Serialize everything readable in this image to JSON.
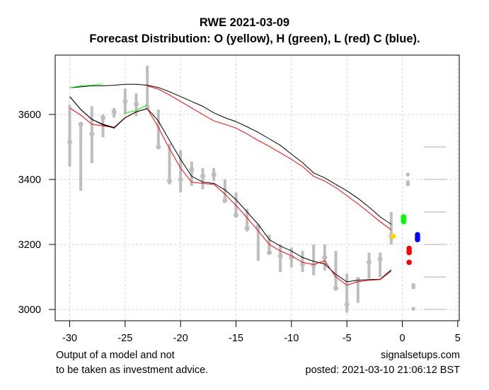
{
  "chart_data": {
    "type": "line",
    "title": "RWE 2021-03-09",
    "subtitle": "Forecast Distribution: O (yellow), H (green), L (red) C (blue).",
    "xlabel": "",
    "ylabel": "",
    "xlim": [
      -31.5,
      6.5
    ],
    "ylim": [
      2970,
      3785
    ],
    "x_ticks": [
      -30,
      -25,
      -20,
      -15,
      -10,
      -5,
      0,
      5
    ],
    "x_tick_labels": [
      "-30",
      "-25",
      "-20",
      "-15",
      "-10",
      "-5",
      "0",
      "5"
    ],
    "y_ticks": [
      3000,
      3200,
      3400,
      3600
    ],
    "y_tick_labels": [
      "3000",
      "3200",
      "3400",
      "3600"
    ],
    "grid": true,
    "colors": {
      "bars": "#bebebe",
      "upper_band": "#000000",
      "lower_band": "#000000",
      "inner_band": "#ff0000",
      "high_segment": "#00ff00",
      "open": "#ffd700",
      "high": "#00ff00",
      "low": "#ff0000",
      "close": "#0000ff",
      "ref_lines": "#bebebe"
    },
    "price_bars": [
      {
        "x": -30,
        "high": 3630,
        "low": 3440,
        "close": 3515
      },
      {
        "x": -29,
        "high": 3570,
        "low": 3365,
        "close": 3570
      },
      {
        "x": -28,
        "high": 3625,
        "low": 3450,
        "close": 3540
      },
      {
        "x": -27,
        "high": 3600,
        "low": 3530,
        "close": 3590
      },
      {
        "x": -26,
        "high": 3620,
        "low": 3590,
        "close": 3608
      },
      {
        "x": -25,
        "high": 3680,
        "low": 3600,
        "close": 3640
      },
      {
        "x": -24,
        "high": 3665,
        "low": 3595,
        "close": 3632
      },
      {
        "x": -23,
        "high": 3750,
        "low": 3615,
        "close": 3622
      },
      {
        "x": -22,
        "high": 3615,
        "low": 3500,
        "close": 3500
      },
      {
        "x": -21,
        "high": 3510,
        "low": 3385,
        "close": 3395
      },
      {
        "x": -20,
        "high": 3490,
        "low": 3360,
        "close": 3400
      },
      {
        "x": -19,
        "high": 3455,
        "low": 3380,
        "close": 3430
      },
      {
        "x": -18,
        "high": 3435,
        "low": 3370,
        "close": 3410
      },
      {
        "x": -17,
        "high": 3435,
        "low": 3395,
        "close": 3415
      },
      {
        "x": -16,
        "high": 3400,
        "low": 3335,
        "close": 3335
      },
      {
        "x": -15,
        "high": 3360,
        "low": 3285,
        "close": 3290
      },
      {
        "x": -14,
        "high": 3310,
        "low": 3240,
        "close": 3250
      },
      {
        "x": -13,
        "high": 3260,
        "low": 3150,
        "close": 3255
      },
      {
        "x": -12,
        "high": 3230,
        "low": 3170,
        "close": 3175
      },
      {
        "x": -11,
        "high": 3200,
        "low": 3115,
        "close": 3165
      },
      {
        "x": -10,
        "high": 3190,
        "low": 3130,
        "close": 3160
      },
      {
        "x": -9,
        "high": 3180,
        "low": 3115,
        "close": 3140
      },
      {
        "x": -8,
        "high": 3200,
        "low": 3105,
        "close": 3135
      },
      {
        "x": -7,
        "high": 3200,
        "low": 3120,
        "close": 3160
      },
      {
        "x": -6,
        "high": 3180,
        "low": 3060,
        "close": 3065
      },
      {
        "x": -5,
        "high": 3110,
        "low": 2990,
        "close": 3015
      },
      {
        "x": -4,
        "high": 3100,
        "low": 3020,
        "close": 3090
      },
      {
        "x": -3,
        "high": 3175,
        "low": 3095,
        "close": 3145
      },
      {
        "x": -2,
        "high": 3175,
        "low": 3100,
        "close": 3155
      },
      {
        "x": -1,
        "high": 3300,
        "low": 3200,
        "close": 3225
      }
    ],
    "series": [
      {
        "name": "upper_black",
        "x": [
          -30,
          -29,
          -28,
          -27,
          -26,
          -25,
          -24,
          -23,
          -22,
          -21,
          -20,
          -19,
          -18,
          -17,
          -16,
          -15,
          -14,
          -13,
          -12,
          -11,
          -10,
          -9,
          -8,
          -7,
          -6,
          -5,
          -4,
          -3,
          -2,
          -1
        ],
        "values": [
          3682,
          3685,
          3688,
          3688,
          3690,
          3693,
          3693,
          3690,
          3683,
          3670,
          3655,
          3640,
          3625,
          3605,
          3590,
          3578,
          3562,
          3545,
          3525,
          3505,
          3478,
          3452,
          3420,
          3405,
          3385,
          3365,
          3342,
          3315,
          3285,
          3262
        ]
      },
      {
        "name": "upper_red",
        "x": [
          -23,
          -22,
          -21,
          -20,
          -19,
          -18,
          -17,
          -16,
          -15,
          -14,
          -13,
          -12,
          -11,
          -10,
          -9,
          -8,
          -7,
          -6,
          -5,
          -4,
          -3,
          -2,
          -1
        ],
        "values": [
          3688,
          3678,
          3660,
          3640,
          3620,
          3600,
          3580,
          3570,
          3558,
          3540,
          3520,
          3502,
          3482,
          3462,
          3440,
          3410,
          3395,
          3375,
          3350,
          3325,
          3298,
          3270,
          3245
        ]
      },
      {
        "name": "upper_green",
        "x": [
          -30,
          -29,
          -28,
          -27
        ],
        "values": [
          3682,
          3688,
          3690,
          3694
        ]
      },
      {
        "name": "mid_black",
        "x": [
          -30,
          -29,
          -28,
          -27,
          -26,
          -25,
          -24,
          -23,
          -22,
          -21,
          -20,
          -19,
          -18,
          -17,
          -16,
          -15,
          -14,
          -13,
          -12,
          -11,
          -10,
          -9,
          -8,
          -7,
          -6,
          -5,
          -4,
          -3,
          -2,
          -1
        ],
        "values": [
          3655,
          3615,
          3585,
          3570,
          3560,
          3590,
          3608,
          3618,
          3580,
          3520,
          3462,
          3410,
          3392,
          3388,
          3368,
          3338,
          3300,
          3262,
          3215,
          3195,
          3180,
          3160,
          3148,
          3140,
          3108,
          3085,
          3090,
          3092,
          3093,
          3122
        ]
      },
      {
        "name": "mid_red",
        "x": [
          -30,
          -29,
          -28,
          -27,
          -26,
          -25,
          -24,
          -23,
          -22,
          -21,
          -20,
          -19,
          -18,
          -17,
          -16,
          -15,
          -14,
          -13,
          -12,
          -11,
          -10,
          -9,
          -8,
          -7,
          -6,
          -5,
          -4,
          -3,
          -2,
          -1
        ],
        "values": [
          3620,
          3598,
          3570,
          3565,
          3560,
          3590,
          3608,
          3618,
          3560,
          3495,
          3435,
          3392,
          3388,
          3385,
          3355,
          3320,
          3282,
          3242,
          3200,
          3180,
          3165,
          3145,
          3138,
          3150,
          3100,
          3075,
          3085,
          3090,
          3092,
          3118
        ]
      },
      {
        "name": "mid_green",
        "x": [
          -25,
          -24,
          -23
        ],
        "values": [
          3605,
          3612,
          3630
        ]
      },
      {
        "name": "lower_black",
        "x": [
          -30,
          -29,
          -28,
          -27,
          -26,
          -25,
          -24,
          -23
        ],
        "values": [
          3655,
          3615,
          3585,
          3568,
          3558,
          3590,
          3608,
          3618
        ]
      }
    ],
    "forecast": {
      "open": [
        {
          "x": 0,
          "y": 3225
        }
      ],
      "high": [
        {
          "x": 0.5,
          "y": 3285
        },
        {
          "x": 0.5,
          "y": 3278
        },
        {
          "x": 0.5,
          "y": 3270
        }
      ],
      "low": [
        {
          "x": 1,
          "y": 3188
        },
        {
          "x": 1,
          "y": 3180
        },
        {
          "x": 1,
          "y": 3175
        },
        {
          "x": 1,
          "y": 3145
        }
      ],
      "close": [
        {
          "x": 1.5,
          "y": 3230
        },
        {
          "x": 1.5,
          "y": 3222
        },
        {
          "x": 1.5,
          "y": 3215
        }
      ],
      "grey_points": [
        {
          "x": 0.5,
          "y": 3415
        },
        {
          "x": 0.5,
          "y": 3392
        },
        {
          "x": 0.5,
          "y": 3385
        },
        {
          "x": 1,
          "y": 3075
        },
        {
          "x": 1,
          "y": 3068
        },
        {
          "x": 1,
          "y": 3002
        }
      ]
    },
    "reference_levels": [
      3500,
      3400,
      3300,
      3200,
      3100,
      3000
    ]
  },
  "footer": {
    "left_line1": "Output of a model and not",
    "left_line2": "to be taken as investment advice.",
    "right_line1": "signalsetups.com",
    "right_line2": "posted: 2021-03-10 21:06:12 BST"
  }
}
